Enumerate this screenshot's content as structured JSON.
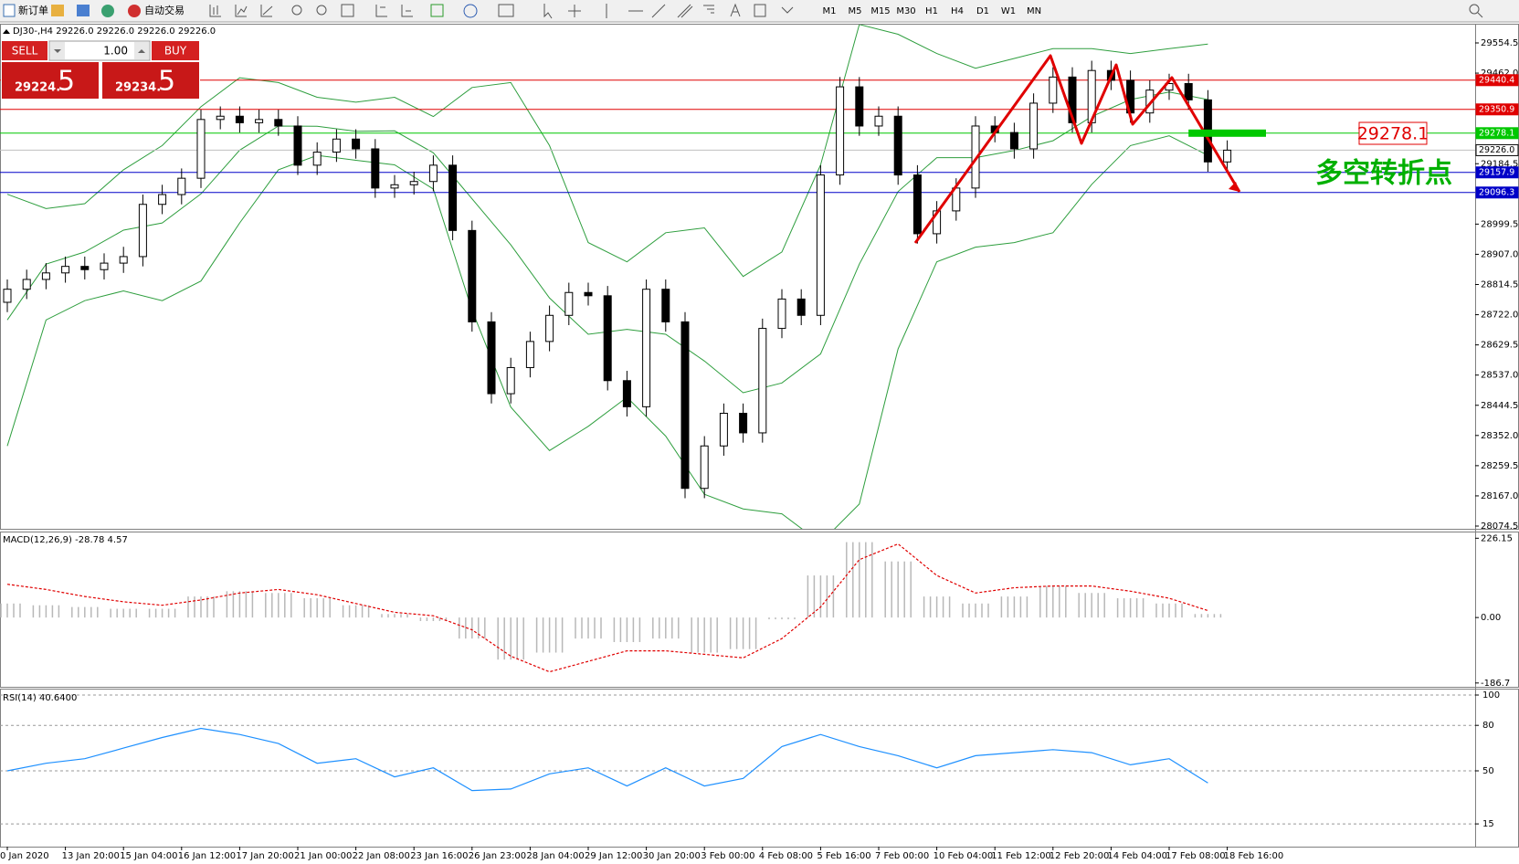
{
  "toolbar": {
    "new_order": "新订单",
    "auto_trading": "自动交易",
    "timeframes": [
      "M1",
      "M5",
      "M15",
      "M30",
      "H1",
      "H4",
      "D1",
      "W1",
      "MN"
    ]
  },
  "trade_panel": {
    "sell": "SELL",
    "lots": "1.00",
    "buy": "BUY",
    "bid_main": "29224.",
    "bid_big": "5",
    "ask_main": "29234.",
    "ask_big": "5"
  },
  "chart_data": [
    {
      "type": "candlestick",
      "title": "DJ30-,H4  29226.0 29226.0 29226.0 29226.0",
      "annotation": "多空转折点",
      "categories": [
        "0 Jan 2020",
        null,
        null,
        "13 Jan 20:00",
        null,
        null,
        "15 Jan 04:00",
        null,
        null,
        "16 Jan 12:00",
        null,
        null,
        "17 Jan 20:00",
        null,
        null,
        "21 Jan 00:00",
        null,
        null,
        "22 Jan 08:00",
        null,
        null,
        "23 Jan 16:00",
        null,
        null,
        "26 Jan 23:00",
        null,
        null,
        "28 Jan 04:00",
        null,
        null,
        "29 Jan 12:00",
        null,
        null,
        "30 Jan 20:00",
        null,
        null,
        "3 Feb 00:00",
        null,
        null,
        "4 Feb 08:00",
        null,
        null,
        "5 Feb 16:00",
        null,
        null,
        "7 Feb 00:00",
        null,
        null,
        "10 Feb 04:00",
        null,
        null,
        "11 Feb 12:00",
        null,
        null,
        "12 Feb 20:00",
        null,
        null,
        "14 Feb 04:00",
        null,
        null,
        "17 Feb 08:00",
        null,
        null,
        "18 Feb 16:00"
      ],
      "open": [
        28760,
        28800,
        28830,
        28850,
        28870,
        28860,
        28880,
        28900,
        29060,
        29090,
        29140,
        29320,
        29330,
        29310,
        29320,
        29300,
        29180,
        29220,
        29260,
        29230,
        29110,
        29120,
        29130,
        29180,
        28980,
        28700,
        28480,
        28560,
        28640,
        28720,
        28790,
        28780,
        28520,
        28440,
        28800,
        28700,
        28190,
        28320,
        28420,
        28360,
        28680,
        28770,
        28720,
        29150,
        29420,
        29300,
        29330,
        29150,
        28970,
        29040,
        29110,
        29300,
        29280,
        29230,
        29370,
        29450,
        29310,
        29470,
        29440,
        29340,
        29410,
        29430,
        29380,
        29190
      ],
      "high": [
        28830,
        28860,
        28880,
        28900,
        28900,
        28910,
        28930,
        29090,
        29120,
        29170,
        29350,
        29360,
        29360,
        29350,
        29350,
        29330,
        29250,
        29290,
        29290,
        29260,
        29150,
        29160,
        29210,
        29210,
        29010,
        28730,
        28590,
        28670,
        28750,
        28820,
        28820,
        28810,
        28550,
        28830,
        28830,
        28730,
        28350,
        28450,
        28450,
        28710,
        28800,
        28800,
        29180,
        29450,
        29450,
        29360,
        29360,
        29180,
        29070,
        29140,
        29330,
        29330,
        29310,
        29400,
        29480,
        29480,
        29500,
        29500,
        29470,
        29440,
        29460,
        29460,
        29410,
        29256
      ],
      "low": [
        28730,
        28770,
        28800,
        28820,
        28830,
        28830,
        28850,
        28870,
        29030,
        29060,
        29110,
        29290,
        29280,
        29280,
        29270,
        29150,
        29150,
        29190,
        29200,
        29080,
        29080,
        29090,
        29100,
        28950,
        28670,
        28450,
        28450,
        28530,
        28610,
        28690,
        28750,
        28490,
        28410,
        28410,
        28670,
        28160,
        28160,
        28290,
        28330,
        28330,
        28650,
        28690,
        28690,
        29120,
        29270,
        29270,
        29120,
        28940,
        28940,
        29010,
        29080,
        29250,
        29200,
        29200,
        29340,
        29280,
        29280,
        29410,
        29310,
        29310,
        29380,
        29350,
        29160,
        29160
      ],
      "close": [
        28800,
        28830,
        28850,
        28870,
        28860,
        28880,
        28900,
        29060,
        29090,
        29140,
        29320,
        29330,
        29310,
        29320,
        29300,
        29180,
        29220,
        29260,
        29230,
        29110,
        29120,
        29130,
        29180,
        28980,
        28700,
        28480,
        28560,
        28640,
        28720,
        28790,
        28780,
        28520,
        28440,
        28800,
        28700,
        28190,
        28320,
        28420,
        28360,
        28680,
        28770,
        28720,
        29150,
        29420,
        29300,
        29330,
        29150,
        28970,
        29040,
        29110,
        29300,
        29280,
        29230,
        29370,
        29450,
        29310,
        29470,
        29440,
        29340,
        29410,
        29430,
        29380,
        29190,
        29226
      ],
      "bollinger": {
        "color": "#2e9e3e",
        "x": [
          0,
          2,
          4,
          6,
          8,
          10,
          12,
          14,
          16,
          18,
          20,
          22,
          24,
          26,
          28,
          30,
          32,
          34,
          36,
          38,
          40,
          42,
          44,
          46,
          48,
          50,
          52,
          54,
          56,
          58,
          60,
          62
        ],
        "upper": [
          29091,
          29047,
          29062,
          29166,
          29240,
          29359,
          29448,
          29433,
          29388,
          29373,
          29388,
          29329,
          29418,
          29433,
          29240,
          28943,
          28884,
          28973,
          28988,
          28839,
          28914,
          29181,
          29611,
          29581,
          29522,
          29477,
          29507,
          29537,
          29537,
          29522,
          29537,
          29551
        ],
        "middle": [
          28706,
          28877,
          28914,
          28981,
          29003,
          29092,
          29226,
          29300,
          29299,
          29284,
          29285,
          29218,
          29077,
          28936,
          28773,
          28662,
          28677,
          28662,
          28580,
          28483,
          28513,
          28602,
          28877,
          29099,
          29203,
          29203,
          29225,
          29255,
          29329,
          29381,
          29404,
          29381
        ],
        "lower": [
          28320,
          28706,
          28765,
          28795,
          28765,
          28825,
          29003,
          29166,
          29210,
          29195,
          29181,
          29107,
          28736,
          28439,
          28306,
          28380,
          28469,
          28350,
          28172,
          28127,
          28112,
          28023,
          28142,
          28617,
          28884,
          28929,
          28943,
          28973,
          29121,
          29240,
          29270,
          29210
        ]
      },
      "levels": [
        {
          "value": 29440.4,
          "label": "29440.4",
          "color": "#e00000",
          "text_color": "#ffffff"
        },
        {
          "value": 29350.9,
          "label": "29350.9",
          "color": "#e00000",
          "text_color": "#ffffff"
        },
        {
          "value": 29278.1,
          "label": "29278.1",
          "color": "#00c800",
          "text_color": "#ffffff"
        },
        {
          "value": 29226,
          "label": "29226.0",
          "color": "#c0c0c0",
          "text_color": "#000000"
        },
        {
          "value": 29157.9,
          "label": "29157.9",
          "color": "#0000c8",
          "text_color": "#ffffff"
        },
        {
          "value": 29096.3,
          "label": "29096.3",
          "color": "#0000c8",
          "text_color": "#ffffff"
        }
      ],
      "ylim": [
        28074.5,
        29554.5
      ],
      "yticks": [
        28074.5,
        {
          "value": 28167,
          "label": "28167.0"
        },
        28259.5,
        {
          "value": 28352,
          "label": "28352.0"
        },
        28444.5,
        {
          "value": 28537,
          "label": "28537.0"
        },
        28629.5,
        {
          "value": 28722,
          "label": "28722.0"
        },
        28814.5,
        {
          "value": 28907,
          "label": "28907.0"
        },
        28999.5,
        29184.5,
        {
          "value": 29462,
          "label": "29462.0"
        },
        29554.5
      ]
    },
    {
      "type": "bar",
      "title": "MACD(12,26,9) -28.78 4.57",
      "color": "#b8b8b8",
      "signal_color": "#e00000",
      "x": [
        0,
        2,
        4,
        6,
        8,
        10,
        12,
        14,
        16,
        18,
        20,
        22,
        24,
        26,
        28,
        30,
        32,
        34,
        36,
        38,
        40,
        42,
        44,
        46,
        48,
        50,
        52,
        54,
        56,
        58,
        60,
        62
      ],
      "values": [
        40,
        35,
        30,
        25,
        25,
        60,
        75,
        70,
        55,
        35,
        10,
        -10,
        -60,
        -120,
        -100,
        -60,
        -70,
        -60,
        -100,
        -90,
        -5,
        120,
        215,
        160,
        60,
        40,
        60,
        90,
        70,
        55,
        40,
        10
      ],
      "signal": [
        95,
        80,
        60,
        45,
        35,
        50,
        70,
        80,
        65,
        40,
        15,
        5,
        -35,
        -110,
        -155,
        -125,
        -95,
        -95,
        -105,
        -115,
        -60,
        30,
        165,
        210,
        120,
        70,
        85,
        90,
        90,
        75,
        55,
        20
      ],
      "ylim": [
        -195,
        240
      ],
      "yticks": [
        226.15,
        {
          "value": 0,
          "label": "0.00"
        },
        -186.7
      ]
    },
    {
      "type": "line",
      "title": "RSI(14) 40.6400",
      "color": "#1e90ff",
      "x": [
        0,
        2,
        4,
        6,
        8,
        10,
        12,
        14,
        16,
        18,
        20,
        22,
        24,
        26,
        28,
        30,
        32,
        34,
        36,
        38,
        40,
        42,
        44,
        46,
        48,
        50,
        52,
        54,
        56,
        58,
        60,
        62
      ],
      "values": [
        50,
        55,
        58,
        65,
        72,
        78,
        74,
        68,
        55,
        58,
        46,
        52,
        37,
        38,
        48,
        52,
        40,
        52,
        40,
        45,
        66,
        74,
        66,
        60,
        52,
        60,
        62,
        64,
        62,
        54,
        58,
        42
      ],
      "ylim": [
        0,
        100
      ],
      "yticks": [
        100,
        80,
        50,
        15
      ]
    }
  ]
}
